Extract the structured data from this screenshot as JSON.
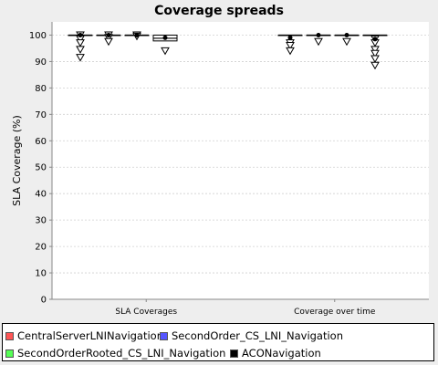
{
  "chart_data": {
    "type": "box",
    "title": "Coverage spreads",
    "ylabel": "SLA Coverage (%)",
    "xlabel": "",
    "ylim": [
      0,
      105
    ],
    "yticks": [
      0,
      10,
      20,
      30,
      40,
      50,
      60,
      70,
      80,
      90,
      100
    ],
    "grid": true,
    "legend_position": "bottom",
    "categories": [
      "SLA Coverages",
      "Coverage over time"
    ],
    "series": [
      {
        "name": "CentralServerLNINavigation",
        "color": "#ff5555",
        "boxes": [
          {
            "q1": 100,
            "median": 100,
            "q3": 100,
            "mean": 100,
            "outliers": [
              100,
              98.5,
              97,
              94.5,
              91.5
            ]
          },
          {
            "q1": 100,
            "median": 100,
            "q3": 100,
            "mean": 99,
            "outliers": [
              97,
              96,
              94
            ]
          }
        ]
      },
      {
        "name": "SecondOrder_CS_LNI_Navigation",
        "color": "#5555ff",
        "boxes": [
          {
            "q1": 100,
            "median": 100,
            "q3": 100,
            "mean": 100,
            "outliers": [
              100,
              99,
              97.5
            ]
          },
          {
            "q1": 100,
            "median": 100,
            "q3": 100,
            "mean": 100,
            "outliers": [
              97.5
            ]
          }
        ]
      },
      {
        "name": "SecondOrderRooted_CS_LNI_Navigation",
        "color": "#55ff55",
        "boxes": [
          {
            "q1": 100,
            "median": 100,
            "q3": 100,
            "mean": 100,
            "outliers": [
              100,
              99.5
            ]
          },
          {
            "q1": 100,
            "median": 100,
            "q3": 100,
            "mean": 100,
            "outliers": [
              97.5
            ]
          }
        ]
      },
      {
        "name": "ACONavigation",
        "color": "#000000",
        "boxes": [
          {
            "q1": 97.8,
            "median": 98.8,
            "q3": 100,
            "mean": 99,
            "outliers": [
              94
            ]
          },
          {
            "q1": 100,
            "median": 100,
            "q3": 100,
            "mean": 98.5,
            "outliers": [
              98.5,
              97,
              94.5,
              93,
              91,
              88.5
            ]
          }
        ]
      }
    ]
  }
}
